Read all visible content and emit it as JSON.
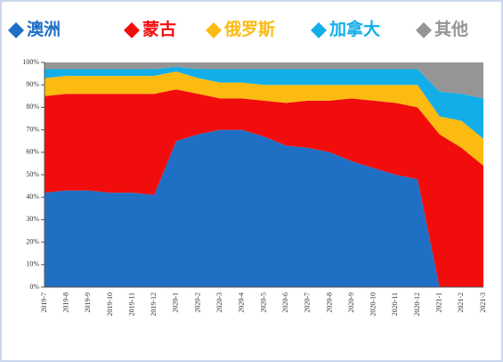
{
  "chart_data": {
    "type": "stacked-area",
    "categories": [
      "2019-7",
      "2019-8",
      "2019-9",
      "2019-10",
      "2019-11",
      "2019-12",
      "2020-1",
      "2020-2",
      "2020-3",
      "2020-4",
      "2020-5",
      "2020-6",
      "2020-7",
      "2020-8",
      "2020-9",
      "2020-10",
      "2020-11",
      "2020-12",
      "2021-1",
      "2021-2",
      "2021-3"
    ],
    "series": [
      {
        "name": "澳洲",
        "color": "#1f6fc5",
        "values": [
          42,
          43,
          43,
          42,
          42,
          41,
          65,
          68,
          70,
          70,
          67,
          63,
          62,
          60,
          56,
          53,
          50,
          48,
          0,
          0,
          0
        ]
      },
      {
        "name": "蒙古",
        "color": "#f20d0d",
        "values": [
          43,
          43,
          43,
          44,
          44,
          45,
          23,
          18,
          14,
          14,
          16,
          19,
          21,
          23,
          28,
          30,
          32,
          32,
          68,
          62,
          54
        ]
      },
      {
        "name": "俄罗斯",
        "color": "#fbbb10",
        "values": [
          8,
          8,
          8,
          8,
          8,
          8,
          8,
          7,
          7,
          7,
          7,
          8,
          7,
          7,
          6,
          7,
          8,
          10,
          8,
          12,
          12
        ]
      },
      {
        "name": "加拿大",
        "color": "#13aee8",
        "values": [
          4,
          3,
          3,
          3,
          3,
          3,
          2,
          4,
          6,
          6,
          7,
          7,
          7,
          7,
          7,
          7,
          7,
          7,
          11,
          12,
          18
        ]
      },
      {
        "name": "其他",
        "color": "#959595",
        "values": [
          3,
          3,
          3,
          3,
          3,
          3,
          2,
          3,
          3,
          3,
          3,
          3,
          3,
          3,
          3,
          3,
          3,
          3,
          13,
          14,
          16
        ]
      }
    ],
    "ylim": [
      0,
      100
    ],
    "yticks": [
      {
        "value": 0,
        "label": "0%"
      },
      {
        "value": 10,
        "label": "10%"
      },
      {
        "value": 20,
        "label": "20%"
      },
      {
        "value": 30,
        "label": "30%"
      },
      {
        "value": 40,
        "label": "40%"
      },
      {
        "value": 50,
        "label": "50%"
      },
      {
        "value": 60,
        "label": "60%"
      },
      {
        "value": 70,
        "label": "70%"
      },
      {
        "value": 80,
        "label": "80%"
      },
      {
        "value": 90,
        "label": "90%"
      },
      {
        "value": 100,
        "label": "100%"
      }
    ]
  }
}
